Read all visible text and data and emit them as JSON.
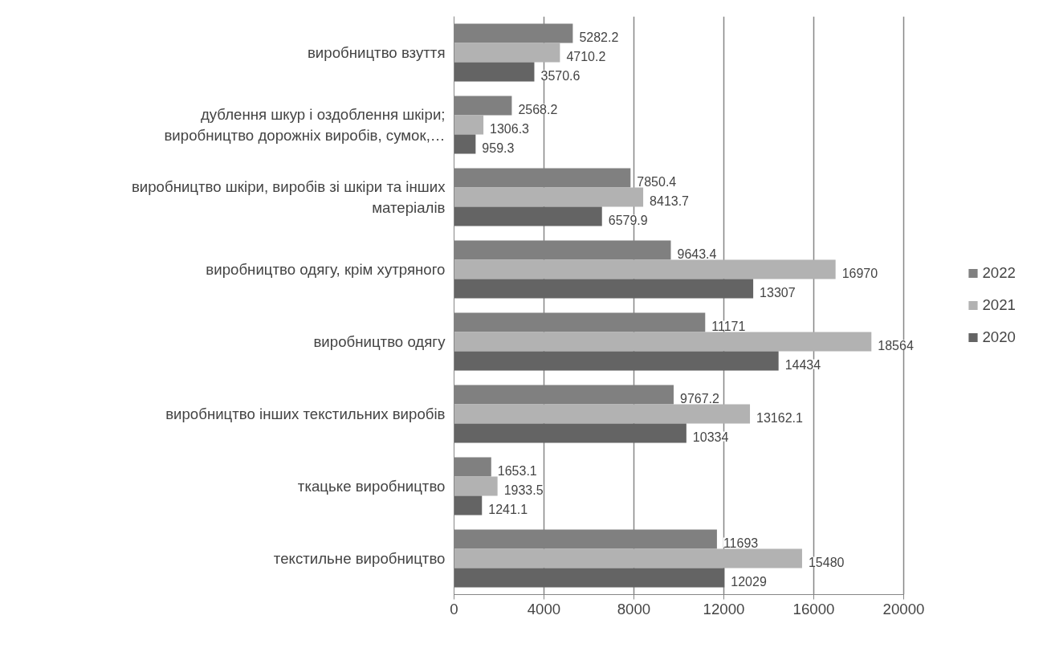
{
  "chart_data": {
    "type": "bar",
    "orientation": "horizontal",
    "categories": [
      "виробництво взуття",
      "дублення шкур і оздоблення шкіри; виробництво дорожніх виробів, сумок,…",
      "виробництво шкіри, виробів зі шкіри та інших матеріалів",
      "виробництво одягу, крім хутряного",
      "виробництво одягу",
      "виробництво інших текстильних виробів",
      "ткацьке виробництво",
      "текстильне виробництво"
    ],
    "series": [
      {
        "name": "2022",
        "color": "#808080",
        "values": [
          5282.2,
          2568.2,
          7850.4,
          9643.4,
          11171,
          9767.2,
          1653.1,
          11693
        ]
      },
      {
        "name": "2021",
        "color": "#b2b2b2",
        "values": [
          4710.2,
          1306.3,
          8413.7,
          16970,
          18564,
          13162.1,
          1933.5,
          15480
        ]
      },
      {
        "name": "2020",
        "color": "#646464",
        "values": [
          3570.6,
          959.3,
          6579.9,
          13307,
          14434,
          10334,
          1241.1,
          12029
        ]
      }
    ],
    "xlim": [
      0,
      20000
    ],
    "xticks": [
      0,
      4000,
      8000,
      12000,
      16000,
      20000
    ],
    "grid": "x",
    "legend": "right",
    "data_labels": true
  }
}
